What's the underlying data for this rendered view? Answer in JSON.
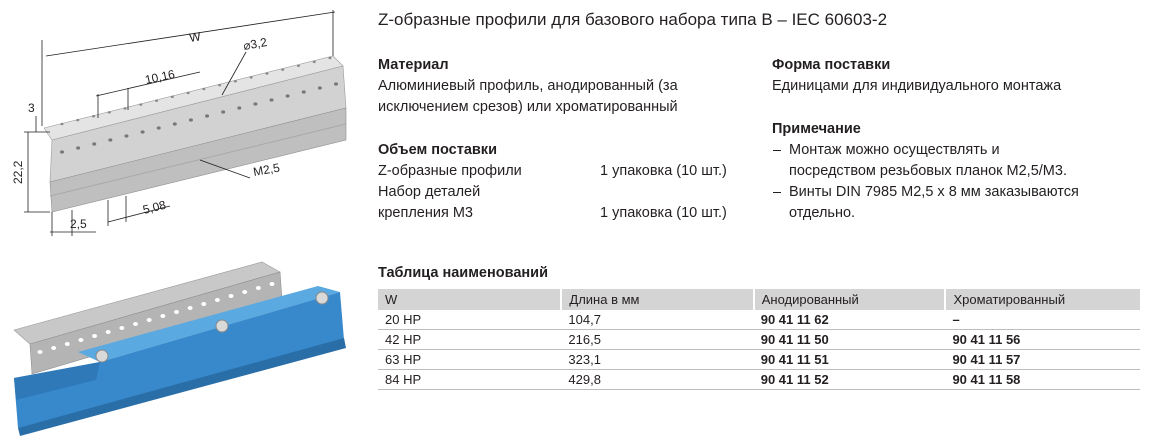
{
  "title": "Z-образные профили для базового набора типа B – IEC 60603-2",
  "drawing": {
    "labels": [
      "W",
      "⌀3,2",
      "10,16",
      "3",
      "22,2",
      "M2,5",
      "2,5",
      "5,08"
    ]
  },
  "material": {
    "heading": "Материал",
    "lines": [
      "Алюминиевый профиль, анодированный (за",
      "исключением срезов) или хроматированный"
    ]
  },
  "scope": {
    "heading": "Объем поставки",
    "items": [
      {
        "name": [
          "Z-образные профили"
        ],
        "qty": "1 упаковка (10 шт.)"
      },
      {
        "name": [
          "Набор деталей",
          "крепления М3"
        ],
        "qty": "1 упаковка (10 шт.)"
      }
    ]
  },
  "delivery": {
    "heading": "Форма поставки",
    "text": "Единицами для индивидуального монтажа"
  },
  "note": {
    "heading": "Примечание",
    "items": [
      [
        "Монтаж можно осуществлять и",
        "посредством резьбовых планок М2,5/М3."
      ],
      [
        "Винты DIN 7985 М2,5 x 8 мм заказываются",
        "отдельно."
      ]
    ]
  },
  "table": {
    "title": "Таблица наименований",
    "header": [
      "W",
      "Длина в мм",
      "Анодированный",
      "Хроматированный"
    ],
    "rows": [
      [
        "20 HP",
        "104,7",
        "90 41 11 62",
        "–"
      ],
      [
        "42 HP",
        "216,5",
        "90 41 11 50",
        "90 41 11 56"
      ],
      [
        "63 HP",
        "323,1",
        "90 41 11 51",
        "90 41 11 57"
      ],
      [
        "84 HP",
        "429,8",
        "90 41 11 52",
        "90 41 11 58"
      ]
    ]
  }
}
